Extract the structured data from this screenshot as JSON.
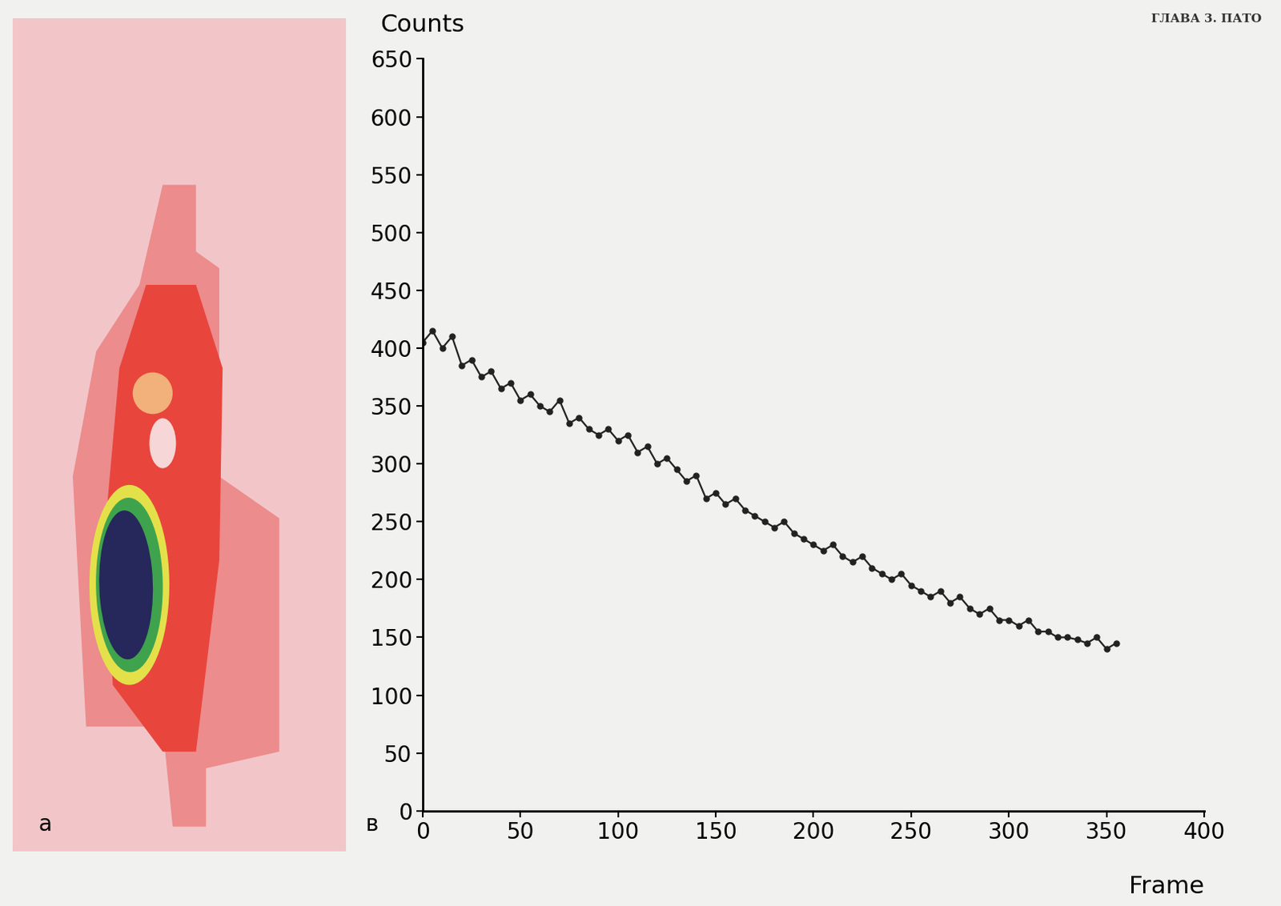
{
  "chart_data": {
    "type": "line",
    "header": "ГЛАВА 3. ПАТО",
    "panel_labels": {
      "image": "a",
      "chart": "в"
    },
    "x_label": "Frame",
    "y_label": "Counts",
    "x": [
      0,
      5,
      10,
      15,
      20,
      25,
      30,
      35,
      40,
      45,
      50,
      55,
      60,
      65,
      70,
      75,
      80,
      85,
      90,
      95,
      100,
      105,
      110,
      115,
      120,
      125,
      130,
      135,
      140,
      145,
      150,
      155,
      160,
      165,
      170,
      175,
      180,
      185,
      190,
      195,
      200,
      205,
      210,
      215,
      220,
      225,
      230,
      235,
      240,
      245,
      250,
      255,
      260,
      265,
      270,
      275,
      280,
      285,
      290,
      295,
      300,
      305,
      310,
      315,
      320,
      325,
      330,
      335,
      340,
      345,
      350,
      355
    ],
    "values": [
      405,
      415,
      400,
      410,
      385,
      390,
      375,
      380,
      365,
      370,
      355,
      360,
      350,
      345,
      355,
      335,
      340,
      330,
      325,
      330,
      320,
      325,
      310,
      315,
      300,
      305,
      295,
      285,
      290,
      270,
      275,
      265,
      270,
      260,
      255,
      250,
      245,
      250,
      240,
      235,
      230,
      225,
      230,
      220,
      215,
      220,
      210,
      205,
      200,
      205,
      195,
      190,
      185,
      190,
      180,
      185,
      175,
      170,
      175,
      165,
      165,
      160,
      165,
      155,
      155,
      150,
      150,
      148,
      145,
      150,
      140,
      145
    ],
    "color": "#222222",
    "marker": "o",
    "line_style": "solid",
    "xlim": [
      0,
      400
    ],
    "xticks": [
      0,
      50,
      100,
      150,
      200,
      250,
      300,
      350,
      400
    ],
    "ylim": [
      0,
      650
    ],
    "yticks": [
      0,
      50,
      100,
      150,
      200,
      250,
      300,
      350,
      400,
      450,
      500,
      550,
      600,
      650
    ],
    "grid": false
  }
}
